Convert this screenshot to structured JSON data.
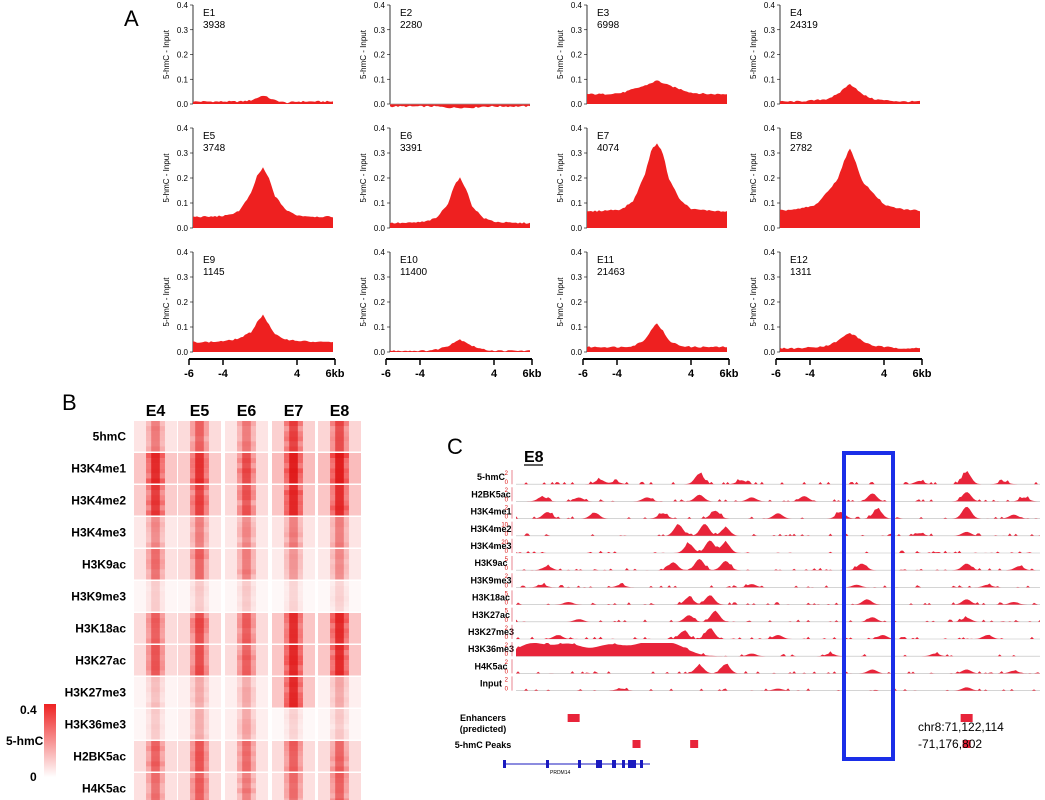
{
  "panels": {
    "a": "A",
    "b": "B",
    "c": "C"
  },
  "chart_data": [
    {
      "type": "area",
      "panel": "A",
      "ylabel": "5-hmC - Input",
      "ylim": [
        0,
        0.4
      ],
      "yticks": [
        "0.0",
        "0.1",
        "0.2",
        "0.3",
        "0.4"
      ],
      "x": [
        -6,
        -4.5,
        -3,
        -2,
        -1,
        -0.5,
        0,
        0.5,
        1,
        2,
        3,
        4.5,
        6
      ],
      "xticks": [
        "-6",
        "-4",
        "4",
        "6kb"
      ],
      "series": [
        {
          "name": "E1",
          "count": "3938",
          "values": [
            0.01,
            0.01,
            0.01,
            0.01,
            0.015,
            0.025,
            0.035,
            0.025,
            0.015,
            0.005,
            0.01,
            0.01,
            0.01
          ]
        },
        {
          "name": "E2",
          "count": "2280",
          "values": [
            -0.01,
            -0.01,
            -0.01,
            -0.01,
            -0.015,
            -0.015,
            -0.015,
            -0.015,
            -0.015,
            -0.01,
            -0.01,
            -0.01,
            -0.01
          ]
        },
        {
          "name": "E3",
          "count": "6998",
          "values": [
            0.04,
            0.04,
            0.045,
            0.06,
            0.075,
            0.085,
            0.095,
            0.085,
            0.075,
            0.06,
            0.045,
            0.04,
            0.04
          ]
        },
        {
          "name": "E4",
          "count": "24319",
          "values": [
            0.01,
            0.01,
            0.015,
            0.02,
            0.04,
            0.065,
            0.08,
            0.065,
            0.04,
            0.02,
            0.015,
            0.01,
            0.01
          ]
        },
        {
          "name": "E5",
          "count": "3748",
          "values": [
            0.045,
            0.045,
            0.05,
            0.07,
            0.14,
            0.21,
            0.24,
            0.2,
            0.13,
            0.07,
            0.05,
            0.045,
            0.045
          ]
        },
        {
          "name": "E6",
          "count": "3391",
          "values": [
            0.02,
            0.02,
            0.025,
            0.04,
            0.1,
            0.17,
            0.2,
            0.16,
            0.09,
            0.04,
            0.025,
            0.02,
            0.02
          ]
        },
        {
          "name": "E7",
          "count": "4074",
          "values": [
            0.065,
            0.07,
            0.075,
            0.11,
            0.22,
            0.31,
            0.34,
            0.3,
            0.2,
            0.11,
            0.075,
            0.07,
            0.065
          ]
        },
        {
          "name": "E8",
          "count": "2782",
          "values": [
            0.07,
            0.075,
            0.09,
            0.14,
            0.2,
            0.27,
            0.32,
            0.26,
            0.19,
            0.14,
            0.09,
            0.075,
            0.07
          ]
        },
        {
          "name": "E9",
          "count": "1145",
          "values": [
            0.04,
            0.04,
            0.045,
            0.055,
            0.08,
            0.12,
            0.15,
            0.11,
            0.07,
            0.05,
            0.045,
            0.04,
            0.04
          ]
        },
        {
          "name": "E10",
          "count": "11400",
          "values": [
            0.005,
            0.005,
            0.005,
            0.01,
            0.025,
            0.04,
            0.05,
            0.04,
            0.025,
            0.01,
            0.005,
            0.005,
            0.005
          ]
        },
        {
          "name": "E11",
          "count": "21463",
          "values": [
            0.02,
            0.02,
            0.02,
            0.025,
            0.05,
            0.09,
            0.115,
            0.085,
            0.045,
            0.025,
            0.02,
            0.02,
            0.02
          ]
        },
        {
          "name": "E12",
          "count": "1311",
          "values": [
            0.015,
            0.015,
            0.02,
            0.025,
            0.045,
            0.065,
            0.075,
            0.065,
            0.045,
            0.025,
            0.02,
            0.015,
            0.015
          ]
        }
      ]
    },
    {
      "type": "heatmap",
      "panel": "B",
      "columns": [
        "E4",
        "E5",
        "E6",
        "E7",
        "E8"
      ],
      "rows": [
        "5hmC",
        "H3K4me1",
        "H3K4me2",
        "H3K4me3",
        "H3K9ac",
        "H3K9me3",
        "H3K18ac",
        "H3K27ac",
        "H3K27me3",
        "H3K36me3",
        "H2BK5ac",
        "H4K5ac"
      ],
      "intensity": [
        [
          0.35,
          0.45,
          0.35,
          0.6,
          0.55
        ],
        [
          0.75,
          0.7,
          0.55,
          0.85,
          0.85
        ],
        [
          0.65,
          0.6,
          0.5,
          0.75,
          0.75
        ],
        [
          0.3,
          0.35,
          0.3,
          0.35,
          0.35
        ],
        [
          0.4,
          0.45,
          0.35,
          0.25,
          0.3
        ],
        [
          0.12,
          0.12,
          0.12,
          0.1,
          0.1
        ],
        [
          0.45,
          0.55,
          0.45,
          0.75,
          0.75
        ],
        [
          0.5,
          0.55,
          0.45,
          0.75,
          0.75
        ],
        [
          0.15,
          0.2,
          0.2,
          0.75,
          0.2
        ],
        [
          0.12,
          0.2,
          0.22,
          0.1,
          0.12
        ],
        [
          0.45,
          0.5,
          0.4,
          0.45,
          0.45
        ],
        [
          0.4,
          0.45,
          0.35,
          0.4,
          0.45
        ]
      ],
      "legend": {
        "label": "5-hmC",
        "max": "0.4",
        "min": "0",
        "color_max": "#ee2222",
        "color_min": "#ffffff"
      }
    },
    {
      "type": "area",
      "panel": "C",
      "title": "E8",
      "tracks": [
        {
          "name": "5-hmC",
          "max": "2",
          "min": "0",
          "peaks": [
            [
              0.16,
              0.35
            ],
            [
              0.19,
              0.2
            ],
            [
              0.35,
              0.8
            ],
            [
              0.43,
              0.3
            ],
            [
              0.77,
              0.25
            ],
            [
              0.86,
              0.9
            ],
            [
              0.93,
              0.2
            ]
          ]
        },
        {
          "name": "H2BK5ac",
          "max": "2",
          "min": "0",
          "peaks": [
            [
              0.05,
              0.35
            ],
            [
              0.12,
              0.3
            ],
            [
              0.25,
              0.3
            ],
            [
              0.35,
              0.5
            ],
            [
              0.45,
              0.3
            ],
            [
              0.55,
              0.4
            ],
            [
              0.68,
              0.6
            ],
            [
              0.86,
              0.7
            ],
            [
              0.97,
              0.3
            ]
          ]
        },
        {
          "name": "H3K4me1",
          "max": "2",
          "min": "0",
          "peaks": [
            [
              0.06,
              0.5
            ],
            [
              0.15,
              0.45
            ],
            [
              0.28,
              0.4
            ],
            [
              0.38,
              0.6
            ],
            [
              0.5,
              0.4
            ],
            [
              0.62,
              0.5
            ],
            [
              0.69,
              0.7
            ],
            [
              0.86,
              0.9
            ],
            [
              0.95,
              0.3
            ]
          ]
        },
        {
          "name": "H3K4me2",
          "max": "10",
          "min": "0",
          "peaks": [
            [
              0.31,
              0.85
            ],
            [
              0.36,
              0.9
            ],
            [
              0.4,
              0.6
            ],
            [
              0.86,
              0.3
            ],
            [
              0.77,
              0.2
            ]
          ]
        },
        {
          "name": "H3K4me3",
          "max": "20",
          "min": "0",
          "peaks": [
            [
              0.33,
              0.7
            ],
            [
              0.37,
              0.95
            ],
            [
              0.4,
              0.8
            ]
          ]
        },
        {
          "name": "H3K9ac",
          "max": "5",
          "min": "0",
          "peaks": [
            [
              0.06,
              0.3
            ],
            [
              0.3,
              0.6
            ],
            [
              0.35,
              0.85
            ],
            [
              0.4,
              0.7
            ],
            [
              0.66,
              0.5
            ],
            [
              0.86,
              0.5
            ],
            [
              0.96,
              0.3
            ]
          ]
        },
        {
          "name": "H3K9me3",
          "max": "2",
          "min": "0",
          "peaks": [
            [
              0.05,
              0.2
            ],
            [
              0.2,
              0.2
            ],
            [
              0.45,
              0.25
            ],
            [
              0.65,
              0.2
            ],
            [
              0.9,
              0.2
            ]
          ]
        },
        {
          "name": "H3K18ac",
          "max": "5",
          "min": "0",
          "peaks": [
            [
              0.1,
              0.2
            ],
            [
              0.33,
              0.55
            ],
            [
              0.37,
              0.7
            ],
            [
              0.67,
              0.4
            ],
            [
              0.86,
              0.4
            ],
            [
              0.95,
              0.2
            ]
          ]
        },
        {
          "name": "H3K27ac",
          "max": "5",
          "min": "0",
          "peaks": [
            [
              0.12,
              0.2
            ],
            [
              0.33,
              0.5
            ],
            [
              0.38,
              0.8
            ],
            [
              0.68,
              0.35
            ],
            [
              0.86,
              0.3
            ]
          ]
        },
        {
          "name": "H3K27me3",
          "max": "2",
          "min": "0",
          "peaks": [
            [
              0.08,
              0.3
            ],
            [
              0.32,
              0.6
            ],
            [
              0.37,
              0.8
            ],
            [
              0.5,
              0.3
            ],
            [
              0.7,
              0.3
            ],
            [
              0.9,
              0.3
            ]
          ]
        },
        {
          "name": "H3K36me3",
          "max": "2",
          "min": "0",
          "peaks": [
            [
              0.03,
              0.95
            ],
            [
              0.1,
              0.9
            ],
            [
              0.18,
              0.85
            ],
            [
              0.25,
              0.9
            ],
            [
              0.3,
              0.8
            ],
            [
              0.45,
              0.2
            ],
            [
              0.6,
              0.2
            ],
            [
              0.8,
              0.2
            ]
          ]
        },
        {
          "name": "H4K5ac",
          "max": "2",
          "min": "0",
          "peaks": [
            [
              0.35,
              0.6
            ],
            [
              0.4,
              0.7
            ],
            [
              0.68,
              0.3
            ],
            [
              0.86,
              0.3
            ],
            [
              0.95,
              0.2
            ]
          ]
        },
        {
          "name": "Input",
          "max": "2",
          "min": "0",
          "peaks": [
            [
              0.2,
              0.15
            ],
            [
              0.5,
              0.15
            ],
            [
              0.86,
              0.25
            ]
          ]
        }
      ],
      "enhancers_label_1": "Enhancers",
      "enhancers_label_2": "(predicted)",
      "peaks_label": "5-hmC Peaks",
      "enhancers": [
        0.11,
        0.86
      ],
      "hmc_peaks": [
        0.23,
        0.34,
        0.86
      ],
      "gene": "PRDM14",
      "coord_line_1": "chr8:71,122,114",
      "coord_line_2": "-71,176,802",
      "colors": {
        "signal": "#e8243a",
        "box": "#1a2ee8",
        "gene": "#1a1abf"
      }
    }
  ]
}
